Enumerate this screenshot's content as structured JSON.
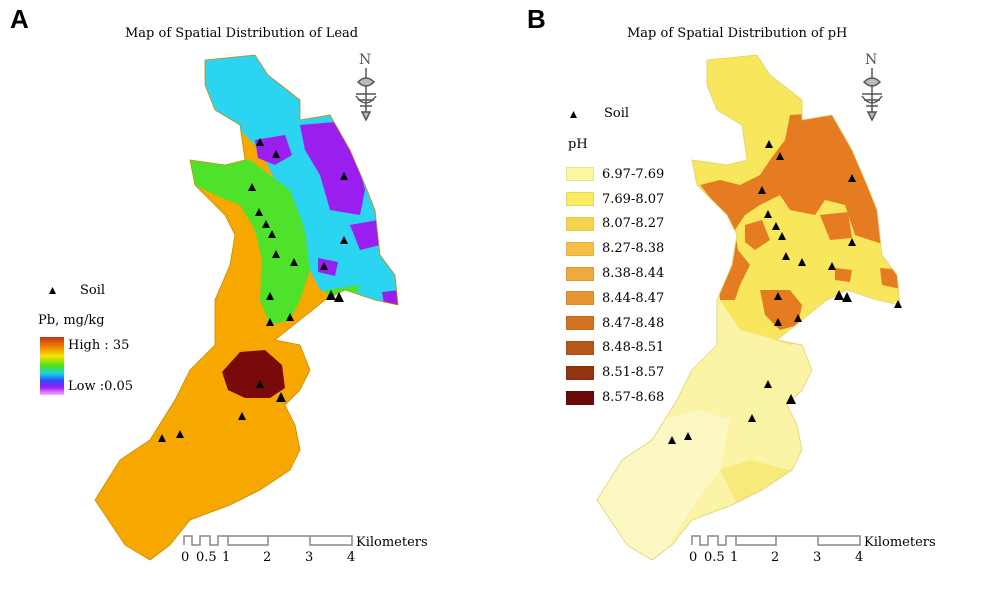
{
  "panel_a": {
    "letter": "A",
    "title": "Map of Spatial Distribution of Lead",
    "legend": {
      "point_label": "Soil",
      "ramp_title": "Pb, mg/kg",
      "high_label": "High : 35",
      "low_label": "Low :0.05",
      "ramp_colors": [
        "#c8301c",
        "#f08a00",
        "#f7e400",
        "#47e01a",
        "#18d6e8",
        "#2f4cff",
        "#9e1bf0",
        "#ffb0ff"
      ]
    },
    "scalebar": {
      "ticks": [
        "0",
        "0.5",
        "1",
        "2",
        "3",
        "4"
      ],
      "unit": "Kilometers"
    }
  },
  "panel_b": {
    "letter": "B",
    "title": "Map of Spatial Distribution of pH",
    "legend": {
      "point_label": "Soil",
      "class_title": "pH",
      "classes": [
        {
          "label": "6.97-7.69",
          "color": "#fbf7a2"
        },
        {
          "label": "7.69-8.07",
          "color": "#f8ec62"
        },
        {
          "label": "8.07-8.27",
          "color": "#f6d650"
        },
        {
          "label": "8.27-8.38",
          "color": "#f4c048"
        },
        {
          "label": "8.38-8.44",
          "color": "#efaa3e"
        },
        {
          "label": "8.44-8.47",
          "color": "#e89432"
        },
        {
          "label": "8.47-8.48",
          "color": "#d47322"
        },
        {
          "label": "8.48-8.51",
          "color": "#b5561a"
        },
        {
          "label": "8.51-8.57",
          "color": "#923412"
        },
        {
          "label": "8.57-8.68",
          "color": "#6a0a08"
        }
      ]
    },
    "scalebar": {
      "ticks": [
        "0",
        "0.5",
        "1",
        "2",
        "3",
        "4"
      ],
      "unit": "Kilometers"
    }
  }
}
